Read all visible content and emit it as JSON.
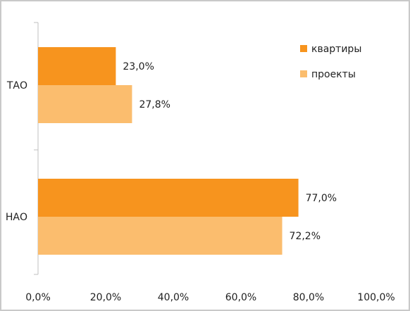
{
  "chart_data": {
    "type": "bar",
    "orientation": "horizontal",
    "categories": [
      "ТАО",
      "НАО"
    ],
    "series": [
      {
        "name": "квартиры",
        "values": [
          23.0,
          77.0
        ],
        "labels": [
          "23,0%",
          "77,0%"
        ],
        "color": "#f7941e"
      },
      {
        "name": "проекты",
        "values": [
          27.8,
          72.2
        ],
        "labels": [
          "27,8%",
          "72,2%"
        ],
        "color": "#fbbd6e"
      }
    ],
    "xlim": [
      0,
      100
    ],
    "x_ticks": [
      "0,0%",
      "20,0%",
      "40,0%",
      "60,0%",
      "80,0%",
      "100,0%"
    ],
    "grid": false,
    "legend_position": "top-right"
  }
}
